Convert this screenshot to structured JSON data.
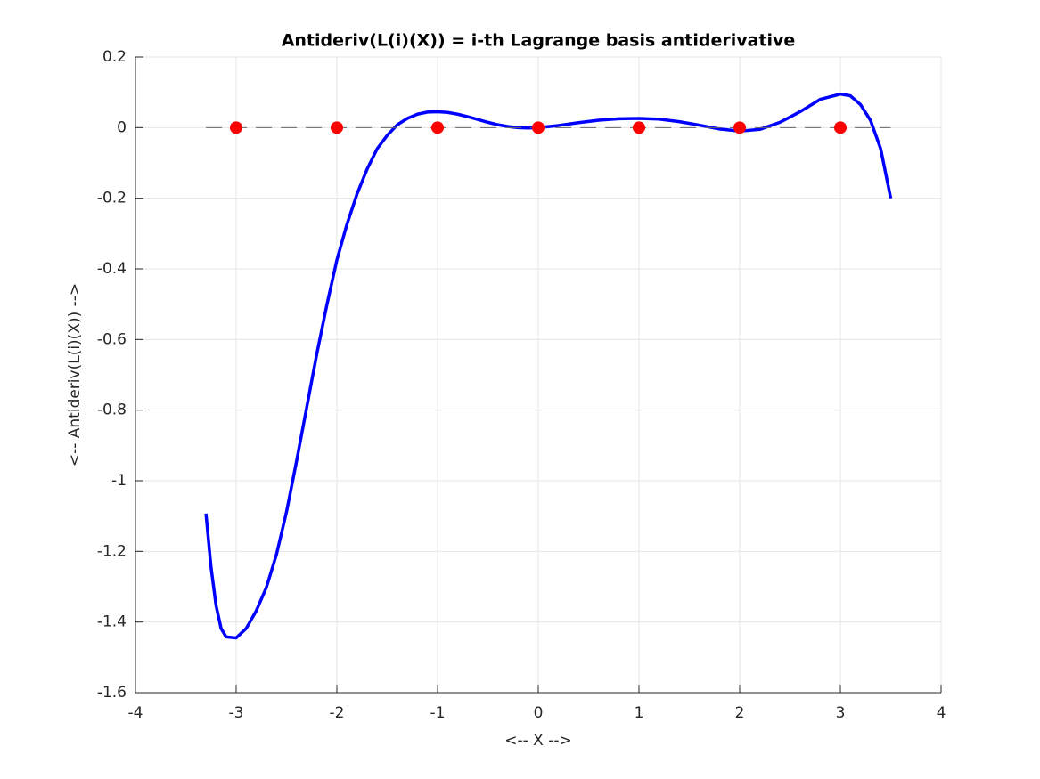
{
  "chart_data": {
    "type": "line",
    "title": "Antideriv(L(i)(X)) = i-th Lagrange basis antiderivative",
    "x_label": "<-- X -->",
    "y_label": "<-- Antideriv(L(i)(X)) -->",
    "xlim": [
      -4,
      4
    ],
    "ylim": [
      -1.6,
      0.2
    ],
    "xticks": [
      -4,
      -3,
      -2,
      -1,
      0,
      1,
      2,
      3,
      4
    ],
    "yticks": [
      -1.6,
      -1.4,
      -1.2,
      -1,
      -0.8,
      -0.6,
      -0.4,
      -0.2,
      0,
      0.2
    ],
    "grid": true,
    "series": [
      {
        "color": "#0000ff",
        "line_style": "solid",
        "x": [
          -3.3,
          -3.25,
          -3.2,
          -3.15,
          -3.1,
          -3.0,
          -2.9,
          -2.8,
          -2.7,
          -2.6,
          -2.5,
          -2.4,
          -2.3,
          -2.2,
          -2.1,
          -2.0,
          -1.9,
          -1.8,
          -1.7,
          -1.6,
          -1.5,
          -1.4,
          -1.3,
          -1.2,
          -1.1,
          -1.0,
          -0.9,
          -0.8,
          -0.7,
          -0.6,
          -0.5,
          -0.4,
          -0.3,
          -0.2,
          -0.1,
          0,
          0.2,
          0.4,
          0.6,
          0.8,
          1.0,
          1.2,
          1.4,
          1.6,
          1.8,
          2.0,
          2.2,
          2.4,
          2.6,
          2.8,
          3.0,
          3.1,
          3.2,
          3.3,
          3.4,
          3.5
        ],
        "values": [
          -1.093,
          -1.244,
          -1.353,
          -1.418,
          -1.442,
          -1.445,
          -1.418,
          -1.368,
          -1.302,
          -1.209,
          -1.088,
          -0.944,
          -0.793,
          -0.642,
          -0.503,
          -0.375,
          -0.274,
          -0.188,
          -0.118,
          -0.06,
          -0.022,
          0.008,
          0.026,
          0.038,
          0.044,
          0.045,
          0.043,
          0.038,
          0.031,
          0.023,
          0.015,
          0.008,
          0.003,
          0.0,
          -0.001,
          0,
          0.006,
          0.014,
          0.021,
          0.025,
          0.026,
          0.024,
          0.017,
          0.007,
          -0.004,
          -0.01,
          -0.005,
          0.015,
          0.045,
          0.08,
          0.095,
          0.09,
          0.065,
          0.02,
          -0.06,
          -0.2
        ]
      },
      {
        "color": "#666666",
        "line_style": "dashed",
        "x": [
          -3.3,
          3.5
        ],
        "values": [
          0,
          0
        ]
      },
      {
        "color": "#ff0000",
        "line_style": "none",
        "marker": "circle",
        "x": [
          -3,
          -2,
          -1,
          0,
          1,
          2,
          3
        ],
        "values": [
          0,
          0,
          0,
          0,
          0,
          0,
          0
        ]
      }
    ]
  }
}
